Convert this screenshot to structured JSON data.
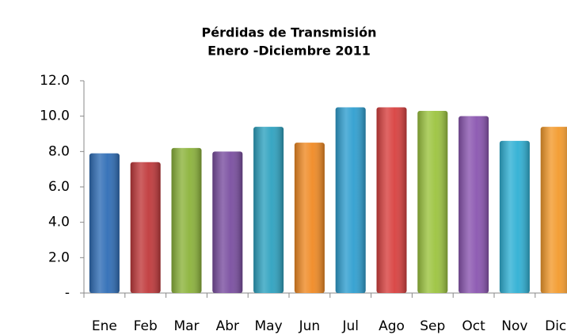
{
  "chart_data": {
    "type": "bar",
    "title": "Pérdidas de Transmisión",
    "subtitle": "Enero -Diciembre 2011",
    "categories": [
      "Ene",
      "Feb",
      "Mar",
      "Abr",
      "May",
      "Jun",
      "Jul",
      "Ago",
      "Sep",
      "Oct",
      "Nov",
      "Dic"
    ],
    "values": [
      7.9,
      7.4,
      8.2,
      8.0,
      9.4,
      8.5,
      10.5,
      10.5,
      10.3,
      10.0,
      8.6,
      9.4
    ],
    "colors": [
      "#2f6db6",
      "#c0393b",
      "#8cb33b",
      "#7a4ea0",
      "#2ea2c0",
      "#f08a24",
      "#2f9fd0",
      "#d8403f",
      "#9cc43f",
      "#8a55b0",
      "#2fb0d4",
      "#f39a2c"
    ],
    "ylim": [
      0,
      12
    ],
    "yticks": [
      {
        "value": 0,
        "label": "-"
      },
      {
        "value": 2,
        "label": "2.0"
      },
      {
        "value": 4,
        "label": "4.0"
      },
      {
        "value": 6,
        "label": "6.0"
      },
      {
        "value": 8,
        "label": "8.0"
      },
      {
        "value": 10,
        "label": "10.0"
      },
      {
        "value": 12,
        "label": "12.0"
      }
    ],
    "grid": false
  }
}
